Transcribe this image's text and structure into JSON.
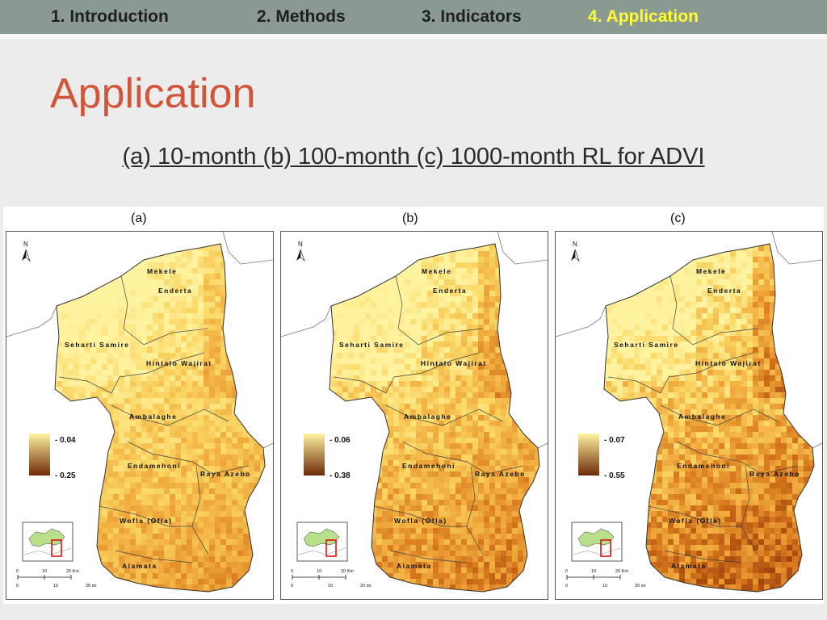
{
  "nav": [
    {
      "label": "1. Introduction",
      "active": false
    },
    {
      "label": "2. Methods",
      "active": false
    },
    {
      "label": "3. Indicators",
      "active": false
    },
    {
      "label": "4. Application",
      "active": true
    }
  ],
  "title": "Application",
  "subtitle": "(a) 10-month (b) 100-month (c) 1000-month RL for ADVI",
  "places": {
    "mekele": "Mekele",
    "enderta": "Enderta",
    "seharti": "Seharti Samire",
    "hintalo": "Hintalo Wajirat",
    "ambalaghe": "Ambalaghe",
    "endamehoni": "Endamehoni",
    "raya": "Raya Azebo",
    "wofla": "Wofla (Ofla)",
    "alamata": "Alamata"
  },
  "north_label": "N",
  "scale": {
    "km_ticks": [
      "0",
      "10",
      "20 Km"
    ],
    "mi_ticks": [
      "0",
      "10",
      "20 mi"
    ]
  },
  "colors": {
    "legend_low": "#fff3a0",
    "legend_high": "#6e2a08",
    "inset_region": "#b8e08a",
    "inset_box": "#e01010"
  },
  "panels": [
    {
      "label": "(a)",
      "legend_low": "- 0.04",
      "legend_high": "- 0.25",
      "intensity": 0.55
    },
    {
      "label": "(b)",
      "legend_low": "- 0.06",
      "legend_high": "- 0.38",
      "intensity": 0.7
    },
    {
      "label": "(c)",
      "legend_low": "- 0.07",
      "legend_high": "- 0.55",
      "intensity": 0.85
    }
  ]
}
